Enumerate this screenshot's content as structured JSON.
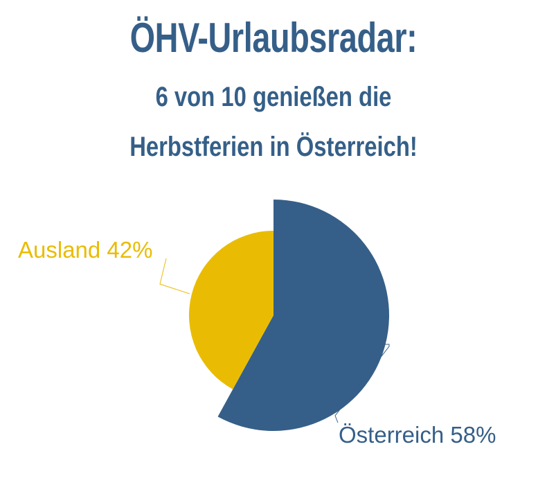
{
  "header": {
    "title": "ÖHV-Urlaubsradar:",
    "subtitle_line1": "6 von 10 genießen die",
    "subtitle_line2": "Herbstferien in Österreich!"
  },
  "colors": {
    "title": "#355f88",
    "oesterreich": "#355f88",
    "ausland": "#e9bc03"
  },
  "chart_data": {
    "type": "pie",
    "categories": [
      "Österreich",
      "Ausland"
    ],
    "values": [
      58,
      42
    ],
    "unit": "%",
    "labels": [
      "Österreich 58%",
      "Ausland 42%"
    ],
    "legend": "none",
    "exploded": "Österreich"
  }
}
